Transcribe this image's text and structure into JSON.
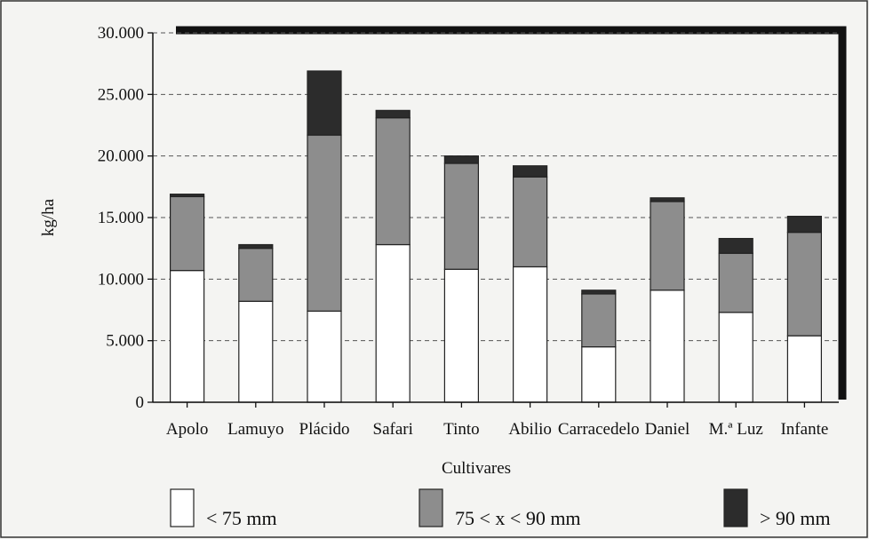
{
  "chart_data": {
    "type": "bar",
    "stacked": true,
    "xlabel": "Cultivares",
    "ylabel": "kg/ha",
    "ylim": [
      0,
      30000
    ],
    "yticks": [
      0,
      5000,
      10000,
      15000,
      20000,
      25000,
      30000
    ],
    "ytick_labels": [
      "0",
      "5.000",
      "10.000",
      "15.000",
      "20.000",
      "25.000",
      "30.000"
    ],
    "grid": "horizontal dashed",
    "legend_position": "bottom",
    "categories": [
      "Apolo",
      "Lamuyo",
      "Plácido",
      "Safari",
      "Tinto",
      "Abilio",
      "Carracedelo",
      "Daniel",
      "M.ª Luz",
      "Infante"
    ],
    "series": [
      {
        "name": "< 75 mm",
        "color": "#ffffff",
        "values": [
          10700,
          8200,
          7400,
          12800,
          10800,
          11000,
          4500,
          9100,
          7300,
          5400
        ]
      },
      {
        "name": "75 < x < 90 mm",
        "color": "#8d8d8d",
        "values": [
          6000,
          4300,
          14300,
          10300,
          8600,
          7300,
          4300,
          7200,
          4800,
          8400
        ]
      },
      {
        "name": "> 90 mm",
        "color": "#2c2c2c",
        "values": [
          200,
          300,
          5200,
          600,
          600,
          900,
          300,
          300,
          1200,
          1300
        ]
      }
    ]
  }
}
